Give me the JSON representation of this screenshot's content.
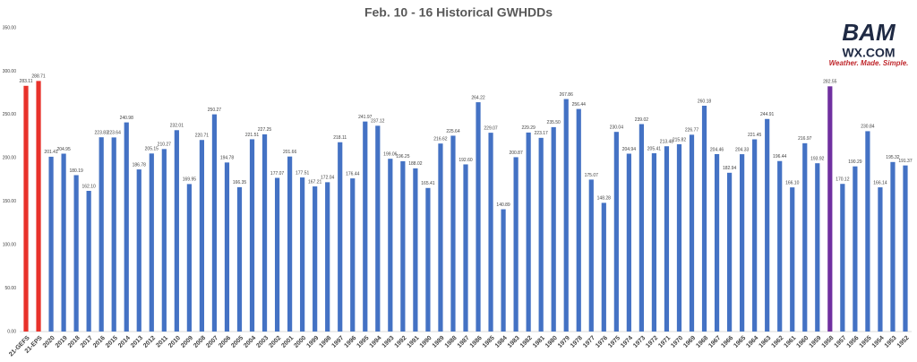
{
  "chart_data": {
    "type": "bar",
    "title": "Feb. 10 - 16 Historical GWHDDs",
    "categories": [
      "21-GEFS",
      "21-EPS",
      "2020",
      "2019",
      "2018",
      "2017",
      "2016",
      "2015",
      "2014",
      "2013",
      "2012",
      "2011",
      "2010",
      "2009",
      "2008",
      "2007",
      "2006",
      "2005",
      "2004",
      "2003",
      "2002",
      "2001",
      "2000",
      "1999",
      "1998",
      "1997",
      "1996",
      "1995",
      "1994",
      "1993",
      "1992",
      "1991",
      "1990",
      "1989",
      "1988",
      "1987",
      "1986",
      "1985",
      "1984",
      "1983",
      "1982",
      "1981",
      "1980",
      "1979",
      "1978",
      "1977",
      "1976",
      "1975",
      "1974",
      "1973",
      "1972",
      "1971",
      "1970",
      "1969",
      "1968",
      "1967",
      "1966",
      "1965",
      "1964",
      "1963",
      "1962",
      "1961",
      "1960",
      "1959",
      "1958",
      "1957",
      "1956",
      "1955",
      "1954",
      "1953",
      "1952"
    ],
    "values": [
      283.11,
      288.71,
      201.41,
      204.95,
      180.19,
      162.1,
      223.83,
      223.64,
      240.98,
      186.78,
      205.15,
      210.27,
      232.01,
      169.95,
      220.71,
      250.27,
      194.78,
      166.35,
      221.51,
      227.25,
      177.07,
      201.66,
      177.51,
      167.21,
      172.04,
      218.11,
      176.44,
      241.97,
      237.12,
      199.06,
      196.25,
      188.02,
      165.41,
      216.62,
      225.64,
      192.6,
      264.22,
      229.07,
      140.89,
      200.87,
      229.29,
      223.17,
      235.5,
      267.86,
      256.44,
      175.07,
      148.28,
      230.04,
      204.94,
      239.02,
      205.41,
      213.48,
      215.82,
      226.77,
      260.18,
      204.46,
      182.94,
      204.33,
      221.45,
      244.91,
      196.44,
      166.1,
      216.97,
      193.92,
      282.55,
      170.12,
      190.29,
      230.84,
      166.14,
      195.32,
      191.37
    ],
    "value_labels": [
      "283.11",
      "288.71",
      "201.41",
      "204.95",
      "180.19",
      "162.10",
      "223.83",
      "223.64",
      "240.98",
      "186.78",
      "205.15",
      "210.27",
      "232.01",
      "169.95",
      "220.71",
      "250.27",
      "194.78",
      "166.35",
      "221.51",
      "227.25",
      "177.07",
      "201.66",
      "177.51",
      "167.21",
      "172.04",
      "218.11",
      "176.44",
      "241.97",
      "237.12",
      "199.06",
      "196.25",
      "188.02",
      "165.41",
      "216.62",
      "225.64",
      "192.60",
      "264.22",
      "229.07",
      "140.89",
      "200.87",
      "229.29",
      "223.17",
      "235.50",
      "267.86",
      "256.44",
      "175.07",
      "148.28",
      "230.04",
      "204.94",
      "239.02",
      "205.41",
      "213.48",
      "215.82",
      "226.77",
      "260.18",
      "204.46",
      "182.94",
      "204.33",
      "221.45",
      "244.91",
      "196.44",
      "166.10",
      "216.97",
      "193.92",
      "282.55",
      "170.12",
      "190.29",
      "230.84",
      "166.14",
      "195.32",
      "191.37"
    ],
    "color": "#4472c4",
    "highlight_colors": {
      "21-GEFS": "#e8322b",
      "21-EPS": "#e8322b",
      "1958": "#7030a0"
    },
    "ylim": [
      0,
      350
    ],
    "yticks": [
      {
        "value": 0,
        "label": "0.00"
      },
      {
        "value": 50,
        "label": "50.00"
      },
      {
        "value": 100,
        "label": "100.00"
      },
      {
        "value": 150,
        "label": "150.00"
      },
      {
        "value": 200,
        "label": "200.00"
      },
      {
        "value": 250,
        "label": "250.00"
      },
      {
        "value": 300,
        "label": "300.00"
      },
      {
        "value": 350,
        "label": "350.00"
      }
    ],
    "grid": false
  },
  "logo": {
    "brand": "BAM",
    "site": "WX.COM",
    "tagline": "Weather. Made. Simple."
  }
}
